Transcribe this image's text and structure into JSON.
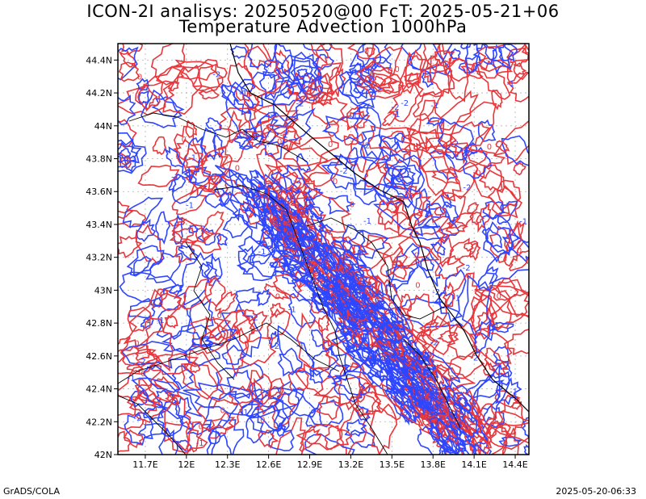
{
  "header": {
    "title_line1": "ICON-2I analisys: 20250520@00 FcT: 2025-05-21+06",
    "title_line2": "Temperature Advection 1000hPa"
  },
  "map": {
    "lon_range": [
      11.5,
      14.5
    ],
    "lat_range": [
      42.0,
      44.5
    ],
    "lon_ticks": [
      "11.7E",
      "12E",
      "12.3E",
      "12.6E",
      "12.9E",
      "13.2E",
      "13.5E",
      "13.8E",
      "14.1E",
      "14.4E"
    ],
    "lat_ticks": [
      "42N",
      "42.2N",
      "42.4N",
      "42.6N",
      "42.8N",
      "43N",
      "43.2N",
      "43.4N",
      "43.6N",
      "43.8N",
      "44N",
      "44.2N",
      "44.4N"
    ],
    "grid": true,
    "contour_colors": {
      "positive": "#e8373c",
      "negative": "#2f46ff"
    },
    "contour_labels": [
      "0",
      "-1",
      "-2"
    ]
  },
  "footer": {
    "left": "GrADS/COLA",
    "right": "2025-05-20-06:33"
  }
}
